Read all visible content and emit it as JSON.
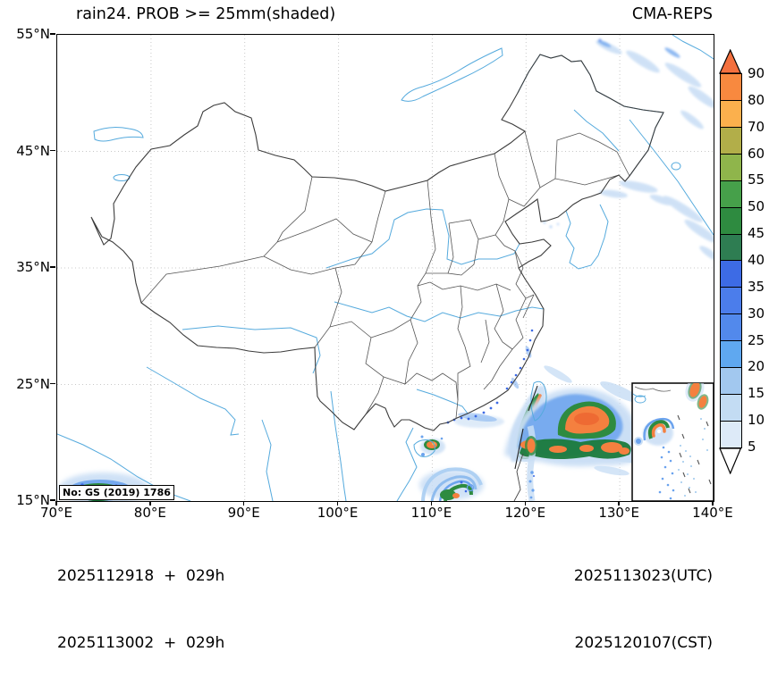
{
  "header": {
    "title": "rain24. PROB >= 25mm(shaded)",
    "agency": "CMA-REPS"
  },
  "axes": {
    "x_tick_labels": [
      "70°E",
      "80°E",
      "90°E",
      "100°E",
      "110°E",
      "120°E",
      "130°E",
      "140°E"
    ],
    "y_tick_labels": [
      "55°N",
      "45°N",
      "35°N",
      "25°N",
      "15°N"
    ]
  },
  "colorbar": {
    "levels": [
      "90",
      "80",
      "70",
      "60",
      "55",
      "50",
      "45",
      "40",
      "35",
      "30",
      "25",
      "20",
      "15",
      "10",
      "5"
    ],
    "segment_colors": [
      "#f8893f",
      "#fbb04d",
      "#b2ae49",
      "#8fb54b",
      "#46a04a",
      "#2e8b40",
      "#2e7d52",
      "#3d6be5",
      "#4b7deb",
      "#5289ec",
      "#5fa8f0",
      "#a2c8ef",
      "#c3dcf3",
      "#ddeaf8"
    ],
    "over_color": "#f4703e",
    "under_color": "#ffffff"
  },
  "footer": {
    "init_line1": "2025112918  +  029h",
    "init_line2": "2025113002  +  029h",
    "valid_utc": "2025113023(UTC)",
    "valid_cst": "2025120107(CST)"
  },
  "map": {
    "license": "No: GS (2019) 1786"
  }
}
